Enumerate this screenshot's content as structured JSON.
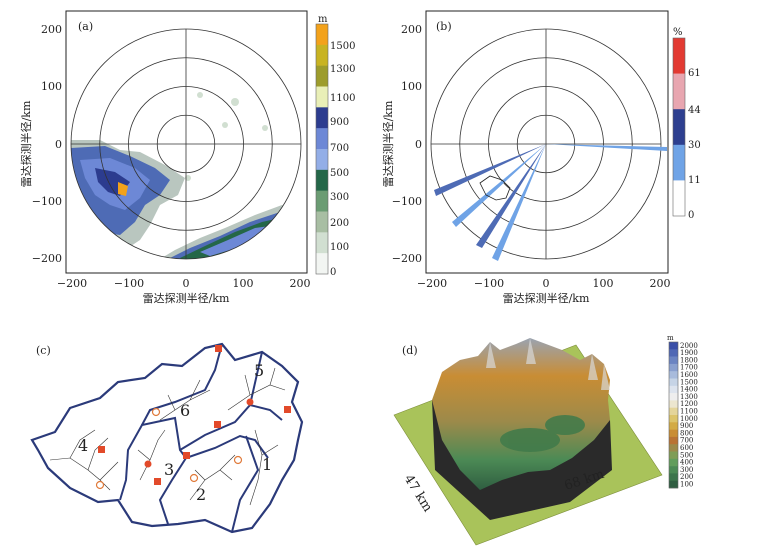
{
  "figure": {
    "panel_a": {
      "tag": "(a)",
      "xlabel": "雷达探测半径/km",
      "ylabel": "雷达探测半径/km",
      "x_ticks": [
        "−200",
        "−100",
        "0",
        "100",
        "200"
      ],
      "y_ticks": [
        "200",
        "100",
        "0",
        "−100",
        "−200"
      ],
      "colorbar_unit": "m",
      "colorbar_labels": [
        "1500",
        "1300",
        "1100",
        "900",
        "700",
        "500",
        "300",
        "200",
        "100",
        "0"
      ],
      "colorbar_colors": [
        "#f3a21b",
        "#c8b322",
        "#9d9c2c",
        "#e9efb7",
        "#2c3c8f",
        "#6d88d6",
        "#93aee7",
        "#246748",
        "#6b9c73",
        "#a8bea3",
        "#d1dfd1",
        "#f2f5f2"
      ],
      "range_rings_km": [
        50,
        100,
        150,
        200
      ]
    },
    "panel_b": {
      "tag": "(b)",
      "xlabel": "雷达探测半径/km",
      "ylabel": "雷达探测半径/km",
      "x_ticks": [
        "−200",
        "−100",
        "0",
        "100",
        "200"
      ],
      "y_ticks": [
        "200",
        "100",
        "0",
        "−100",
        "−200"
      ],
      "colorbar_unit": "%",
      "colorbar_labels": [
        "61",
        "44",
        "30",
        "11",
        "0"
      ],
      "colorbar_colors": [
        "#e23a32",
        "#e8a6b0",
        "#2d3f8f",
        "#6fa3e6",
        "#ffffff"
      ],
      "range_rings_km": [
        50,
        100,
        150,
        200
      ]
    },
    "panel_c": {
      "tag": "(c)",
      "subbasins": [
        "1",
        "2",
        "3",
        "4",
        "5",
        "6"
      ]
    },
    "panel_d": {
      "tag": "(d)",
      "dim_depth": "47 km",
      "dim_width": "68 km",
      "colorbar_unit": "m",
      "colorbar_labels": [
        "2000",
        "1900",
        "1800",
        "1700",
        "1600",
        "1500",
        "1400",
        "1300",
        "1200",
        "1100",
        "1000",
        "900",
        "800",
        "700",
        "600",
        "500",
        "400",
        "300",
        "200",
        "100"
      ],
      "colorbar_colors": [
        "#3a4fa8",
        "#5068b5",
        "#6b84c2",
        "#8aa0cf",
        "#a8bbdc",
        "#c6d4e6",
        "#dde4ee",
        "#eeeeee",
        "#ece6cf",
        "#e4d59a",
        "#dcc46a",
        "#d3ab45",
        "#c98d34",
        "#b97334",
        "#9c8a4a",
        "#7f9d56",
        "#629d5c",
        "#4c8a55",
        "#3d754c",
        "#2f5e41"
      ]
    }
  }
}
